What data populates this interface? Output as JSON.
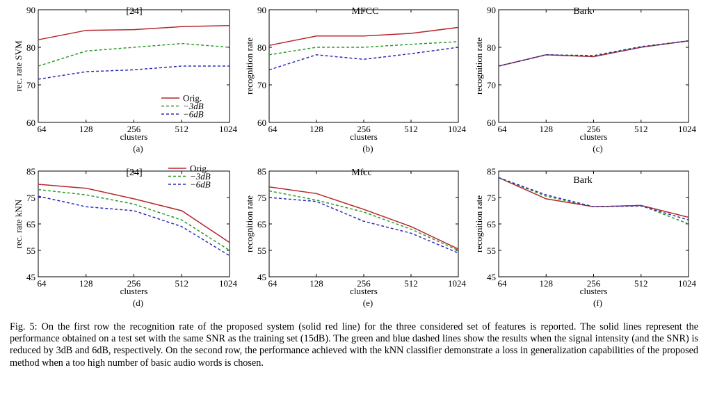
{
  "styles": {
    "series_colors": [
      "#b5272c",
      "#2a9a2a",
      "#2b2bb8"
    ],
    "series_dash": [
      "",
      "4,3",
      "4,3"
    ]
  },
  "caption": {
    "label": "Fig. 5:",
    "text": "On the first row the recognition rate of the proposed system (solid red line) for the three considered set of features is reported. The solid lines represent the performance obtained on a test set with the same SNR as the training set (15dB). The green and blue dashed lines show the results when the signal intensity (and the SNR) is reduced by 3dB and 6dB, respectively. On the second row, the performance achieved with the kNN classifier demonstrate a loss in generalization capabilities of the proposed method when a too high number of basic audio words is chosen."
  },
  "chart_data": [
    {
      "type": "line",
      "panel": "(a)",
      "title": "[24]",
      "xlabel": "clusters",
      "ylabel": "rec. rate SVM",
      "categories": [
        "64",
        "128",
        "256",
        "512",
        "1024"
      ],
      "ylim": [
        60,
        90
      ],
      "yticks": [
        60,
        70,
        80,
        90
      ],
      "legend": {
        "position": "bottom-right",
        "entries": [
          "Orig.",
          "−3dB",
          "−6dB"
        ]
      },
      "series": [
        {
          "name": "Orig.",
          "values": [
            82,
            84.5,
            84.7,
            85.5,
            85.8
          ]
        },
        {
          "name": "−3dB",
          "values": [
            75,
            79,
            80,
            81,
            80
          ]
        },
        {
          "name": "−6dB",
          "values": [
            71.5,
            73.5,
            74,
            75,
            75
          ]
        }
      ]
    },
    {
      "type": "line",
      "panel": "(b)",
      "title": "MFCC",
      "xlabel": "clusters",
      "ylabel": "recognition rate",
      "categories": [
        "64",
        "128",
        "256",
        "512",
        "1024"
      ],
      "ylim": [
        60,
        90
      ],
      "yticks": [
        60,
        70,
        80,
        90
      ],
      "series": [
        {
          "name": "Orig.",
          "values": [
            80.5,
            83,
            83,
            83.7,
            85.3
          ]
        },
        {
          "name": "−3dB",
          "values": [
            78,
            80,
            80,
            80.8,
            81.5
          ]
        },
        {
          "name": "−6dB",
          "values": [
            74,
            78,
            76.8,
            78.3,
            80
          ]
        }
      ]
    },
    {
      "type": "line",
      "panel": "(c)",
      "title": "Bark",
      "xlabel": "clusters",
      "ylabel": "recognition rate",
      "categories": [
        "64",
        "128",
        "256",
        "512",
        "1024"
      ],
      "ylim": [
        60,
        90
      ],
      "yticks": [
        60,
        70,
        80,
        90
      ],
      "series": [
        {
          "name": "Orig.",
          "values": [
            75,
            78,
            77.5,
            80,
            81.7
          ]
        },
        {
          "name": "−3dB",
          "values": [
            75,
            78,
            77.8,
            80.2,
            81.7
          ]
        },
        {
          "name": "−6dB",
          "values": [
            75,
            78,
            77.7,
            80.1,
            81.7
          ]
        }
      ]
    },
    {
      "type": "line",
      "panel": "(d)",
      "title": "[24]",
      "xlabel": "clusters",
      "ylabel": "rec. rate kNN",
      "categories": [
        "64",
        "128",
        "256",
        "512",
        "1024"
      ],
      "ylim": [
        45,
        85
      ],
      "yticks": [
        45,
        55,
        65,
        75,
        85
      ],
      "legend": {
        "position": "top-right",
        "entries": [
          "Orig.",
          "−3dB",
          "−6dB"
        ]
      },
      "series": [
        {
          "name": "Orig.",
          "values": [
            80,
            78.5,
            74.5,
            70,
            58
          ]
        },
        {
          "name": "−3dB",
          "values": [
            78,
            76,
            72.5,
            66.5,
            55
          ]
        },
        {
          "name": "−6dB",
          "values": [
            75.5,
            71.5,
            70,
            64,
            53
          ]
        }
      ]
    },
    {
      "type": "line",
      "panel": "(e)",
      "title": "Mfcc",
      "xlabel": "clusters",
      "ylabel": "recognition rate",
      "categories": [
        "64",
        "128",
        "256",
        "512",
        "1024"
      ],
      "ylim": [
        45,
        85
      ],
      "yticks": [
        45,
        55,
        65,
        75,
        85
      ],
      "series": [
        {
          "name": "Orig.",
          "values": [
            79,
            76.5,
            70.5,
            64,
            55.5
          ]
        },
        {
          "name": "−3dB",
          "values": [
            77.5,
            74,
            69.5,
            63,
            55
          ]
        },
        {
          "name": "−6dB",
          "values": [
            75,
            73.5,
            66,
            61.5,
            54
          ]
        }
      ]
    },
    {
      "type": "line",
      "panel": "(f)",
      "title": "Bark",
      "xlabel": "clusters",
      "ylabel": "recognition rate",
      "categories": [
        "64",
        "128",
        "256",
        "512",
        "1024"
      ],
      "ylim": [
        45,
        85
      ],
      "yticks": [
        45,
        55,
        65,
        75,
        85
      ],
      "series": [
        {
          "name": "Orig.",
          "values": [
            82.5,
            74.5,
            71.5,
            72,
            67.5
          ]
        },
        {
          "name": "−3dB",
          "values": [
            82.5,
            75.5,
            71.5,
            72,
            65
          ]
        },
        {
          "name": "−6dB",
          "values": [
            82.5,
            76,
            71.5,
            71.8,
            66.5
          ]
        }
      ]
    }
  ]
}
